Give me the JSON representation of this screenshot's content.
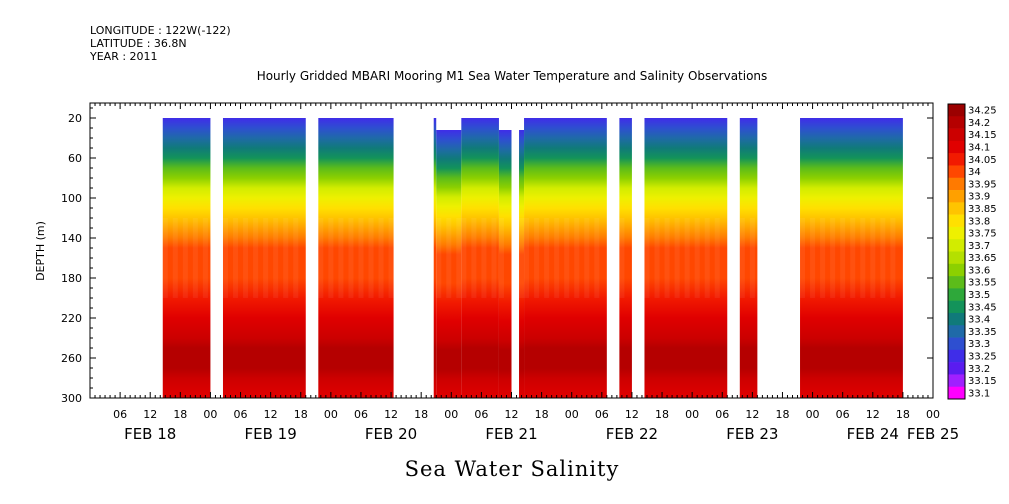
{
  "header": {
    "longitude": "LONGITUDE : 122W(-122)",
    "latitude": "LATITUDE : 36.8N",
    "year": "YEAR : 2011"
  },
  "chart_data": {
    "type": "heatmap",
    "title": "Hourly Gridded MBARI Mooring M1 Sea Water Temperature and Salinity Observations",
    "xlabel": "Sea Water Salinity",
    "ylabel": "DEPTH (m)",
    "variable": "Sea Water Salinity",
    "y_reversed": true,
    "ylim": [
      300,
      5
    ],
    "y_ticks": [
      20,
      60,
      100,
      140,
      180,
      220,
      260,
      300
    ],
    "x_range_hours": [
      0,
      168
    ],
    "x_ticks": [
      {
        "h": 6,
        "label": "06"
      },
      {
        "h": 12,
        "label": "12"
      },
      {
        "h": 18,
        "label": "18"
      },
      {
        "h": 24,
        "label": "00"
      },
      {
        "h": 30,
        "label": "06"
      },
      {
        "h": 36,
        "label": "12"
      },
      {
        "h": 42,
        "label": "18"
      },
      {
        "h": 48,
        "label": "00"
      },
      {
        "h": 54,
        "label": "06"
      },
      {
        "h": 60,
        "label": "12"
      },
      {
        "h": 66,
        "label": "18"
      },
      {
        "h": 72,
        "label": "00"
      },
      {
        "h": 78,
        "label": "06"
      },
      {
        "h": 84,
        "label": "12"
      },
      {
        "h": 90,
        "label": "18"
      },
      {
        "h": 96,
        "label": "00"
      },
      {
        "h": 102,
        "label": "06"
      },
      {
        "h": 108,
        "label": "12"
      },
      {
        "h": 114,
        "label": "18"
      },
      {
        "h": 120,
        "label": "00"
      },
      {
        "h": 126,
        "label": "06"
      },
      {
        "h": 132,
        "label": "12"
      },
      {
        "h": 138,
        "label": "18"
      },
      {
        "h": 144,
        "label": "00"
      },
      {
        "h": 150,
        "label": "06"
      },
      {
        "h": 156,
        "label": "12"
      },
      {
        "h": 162,
        "label": "18"
      },
      {
        "h": 168,
        "label": "00"
      }
    ],
    "day_labels": [
      {
        "h": 12,
        "label": "FEB 18"
      },
      {
        "h": 36,
        "label": "FEB 19"
      },
      {
        "h": 60,
        "label": "FEB 20"
      },
      {
        "h": 84,
        "label": "FEB 21"
      },
      {
        "h": 108,
        "label": "FEB 22"
      },
      {
        "h": 132,
        "label": "FEB 23"
      },
      {
        "h": 156,
        "label": "FEB 24"
      },
      {
        "h": 168,
        "label": "FEB 25"
      }
    ],
    "data_segments": [
      {
        "start_h": 14.5,
        "end_h": 24.0,
        "top_m": 20
      },
      {
        "start_h": 26.5,
        "end_h": 43.0,
        "top_m": 20
      },
      {
        "start_h": 45.5,
        "end_h": 60.5,
        "top_m": 20
      },
      {
        "start_h": 68.5,
        "end_h": 69.0,
        "top_m": 20
      },
      {
        "start_h": 69.0,
        "end_h": 74.0,
        "top_m": 32
      },
      {
        "start_h": 74.0,
        "end_h": 81.5,
        "top_m": 20
      },
      {
        "start_h": 81.5,
        "end_h": 84.0,
        "top_m": 32
      },
      {
        "start_h": 85.5,
        "end_h": 86.5,
        "top_m": 32
      },
      {
        "start_h": 86.5,
        "end_h": 103.0,
        "top_m": 20
      },
      {
        "start_h": 105.5,
        "end_h": 108.0,
        "top_m": 20
      },
      {
        "start_h": 110.5,
        "end_h": 127.0,
        "top_m": 20
      },
      {
        "start_h": 129.5,
        "end_h": 133.0,
        "top_m": 20
      },
      {
        "start_h": 141.5,
        "end_h": 162.0,
        "top_m": 20
      }
    ],
    "depth_salinity_profile": [
      {
        "depth": 20,
        "value": 33.27
      },
      {
        "depth": 30,
        "value": 33.31
      },
      {
        "depth": 40,
        "value": 33.36
      },
      {
        "depth": 50,
        "value": 33.41
      },
      {
        "depth": 60,
        "value": 33.47
      },
      {
        "depth": 70,
        "value": 33.55
      },
      {
        "depth": 80,
        "value": 33.62
      },
      {
        "depth": 90,
        "value": 33.69
      },
      {
        "depth": 100,
        "value": 33.75
      },
      {
        "depth": 110,
        "value": 33.81
      },
      {
        "depth": 120,
        "value": 33.86
      },
      {
        "depth": 130,
        "value": 33.91
      },
      {
        "depth": 140,
        "value": 33.95
      },
      {
        "depth": 150,
        "value": 33.98
      },
      {
        "depth": 160,
        "value": 34.0
      },
      {
        "depth": 180,
        "value": 34.02
      },
      {
        "depth": 200,
        "value": 34.05
      },
      {
        "depth": 220,
        "value": 34.1
      },
      {
        "depth": 240,
        "value": 34.16
      },
      {
        "depth": 250,
        "value": 34.2
      },
      {
        "depth": 260,
        "value": 34.22
      },
      {
        "depth": 270,
        "value": 34.19
      },
      {
        "depth": 280,
        "value": 34.15
      },
      {
        "depth": 300,
        "value": 34.11
      }
    ],
    "colorbar": {
      "min": 33.1,
      "max": 34.25,
      "step": 0.05,
      "levels": [
        "34.25",
        "34.2",
        "34.15",
        "34.1",
        "34.05",
        "34",
        "33.95",
        "33.9",
        "33.85",
        "33.8",
        "33.75",
        "33.7",
        "33.65",
        "33.6",
        "33.55",
        "33.5",
        "33.45",
        "33.4",
        "33.35",
        "33.3",
        "33.25",
        "33.2",
        "33.15",
        "33.1"
      ],
      "colors": [
        "#9b0000",
        "#b50000",
        "#cc0000",
        "#e00000",
        "#f21a00",
        "#ff4700",
        "#ff7a00",
        "#ffa000",
        "#ffc400",
        "#ffe000",
        "#eef000",
        "#d2ec00",
        "#b4e000",
        "#8cd000",
        "#5cbc1a",
        "#2ea83a",
        "#13935a",
        "#107a7a",
        "#1f6aa8",
        "#2e4fd0",
        "#3f2de8",
        "#5a1cf0",
        "#a020ff",
        "#ff00ff"
      ]
    }
  }
}
